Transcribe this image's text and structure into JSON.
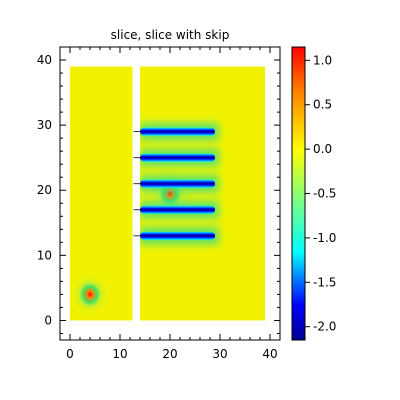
{
  "chart_data": {
    "type": "heatmap",
    "title": "slice, slice with skip",
    "xlabel": "",
    "ylabel": "",
    "xlim": [
      -2,
      42
    ],
    "ylim": [
      -3,
      42
    ],
    "x_ticks": [
      0,
      10,
      20,
      30,
      40
    ],
    "y_ticks": [
      0,
      10,
      20,
      30,
      40
    ],
    "grid": false,
    "colormap": "jet",
    "colorbar": {
      "min": -2.15,
      "max": 1.15,
      "ticks": [
        1.0,
        0.5,
        0.0,
        -0.5,
        -1.0,
        -1.5,
        -2.0
      ],
      "tick_labels": [
        "1.0",
        "0.5",
        "0.0",
        "-0.5",
        "-1.0",
        "-1.5",
        "-2.0"
      ]
    },
    "slices": [
      {
        "x": [
          0,
          12.5
        ],
        "y": [
          0,
          39
        ]
      },
      {
        "x": [
          14,
          39
        ],
        "y": [
          0,
          39
        ]
      }
    ],
    "features": [
      {
        "kind": "spot",
        "x": 4,
        "y": 4,
        "value": 1.1
      },
      {
        "kind": "spot",
        "x": 20,
        "y": 19.5,
        "value": 0.9
      },
      {
        "kind": "bar",
        "x": [
          14,
          29
        ],
        "y": 29,
        "value": -2.0
      },
      {
        "kind": "bar",
        "x": [
          14,
          29
        ],
        "y": 25,
        "value": -2.0
      },
      {
        "kind": "bar",
        "x": [
          14,
          29
        ],
        "y": 21,
        "value": -2.0
      },
      {
        "kind": "bar",
        "x": [
          14,
          29
        ],
        "y": 17,
        "value": -2.0
      },
      {
        "kind": "bar",
        "x": [
          14,
          29
        ],
        "y": 13,
        "value": -2.0
      }
    ],
    "background_value": 0.0
  }
}
